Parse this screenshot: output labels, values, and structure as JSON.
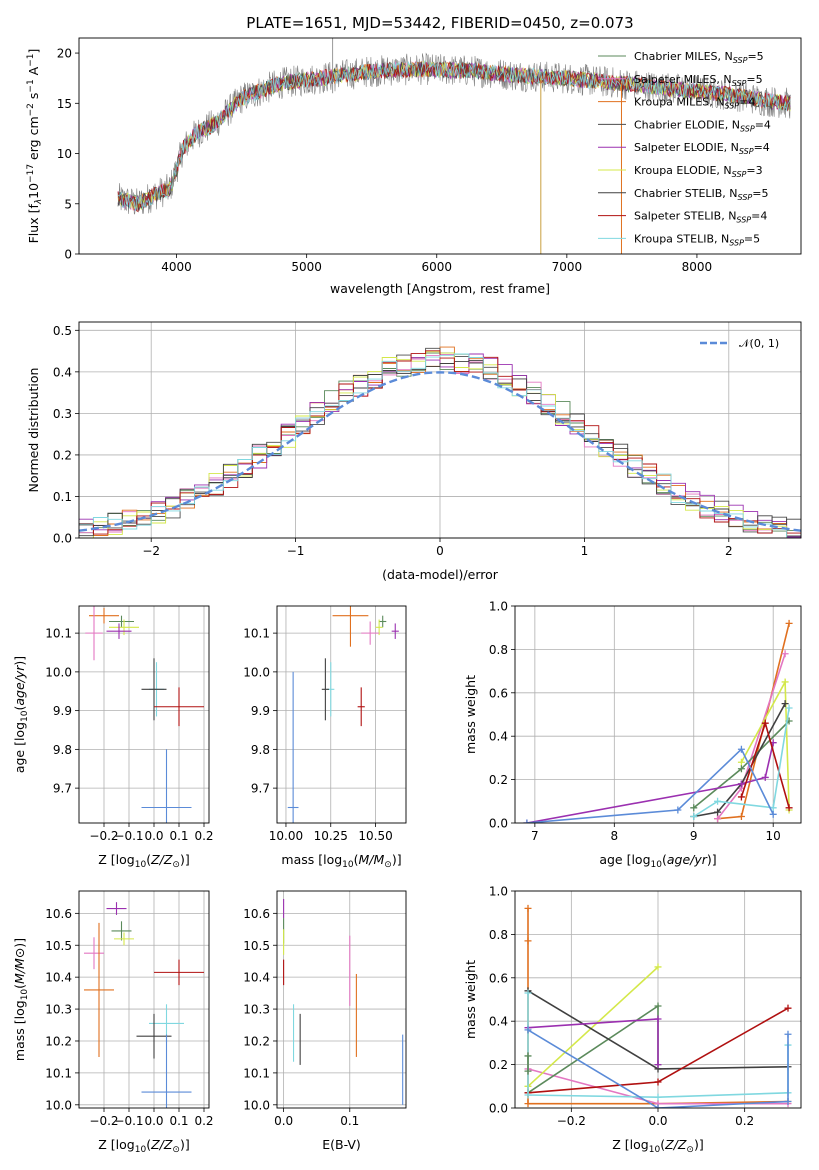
{
  "chart_data": [
    {
      "type": "line",
      "title": "PLATE=1651, MJD=53442, FIBERID=0450, z=0.073",
      "xlabel": "wavelength [Angstrom, rest frame]",
      "ylabel_parts": [
        "Flux [f",
        "λ",
        "10",
        "−17",
        " erg cm",
        "−2",
        " s",
        "−1",
        " A",
        "−1",
        "]"
      ],
      "xlim": [
        3250,
        8800
      ],
      "ylim": [
        0,
        21.5
      ],
      "xticks": [
        "4000",
        "5000",
        "6000",
        "7000",
        "8000"
      ],
      "yticks": [
        "0",
        "5",
        "10",
        "15",
        "20"
      ],
      "legend_position": "top-right",
      "series": [
        {
          "name": "Chabrier MILES, N",
          "sub": "SSP",
          "suffix": "=5",
          "color": "#5b8a5b"
        },
        {
          "name": "Salpeter MILES, N",
          "sub": "SSP",
          "suffix": "=5",
          "color": "#e377c2"
        },
        {
          "name": "Kroupa MILES, N",
          "sub": "SSP",
          "suffix": "=4",
          "color": "#e0701f"
        },
        {
          "name": "Chabrier ELODIE, N",
          "sub": "SSP",
          "suffix": "=4",
          "color": "#4d4d4d"
        },
        {
          "name": "Salpeter ELODIE, N",
          "sub": "SSP",
          "suffix": "=4",
          "color": "#9b30b0"
        },
        {
          "name": "Kroupa ELODIE, N",
          "sub": "SSP",
          "suffix": "=3",
          "color": "#d4e84a"
        },
        {
          "name": "Chabrier STELIB, N",
          "sub": "SSP",
          "suffix": "=5",
          "color": "#404040"
        },
        {
          "name": "Salpeter STELIB, N",
          "sub": "SSP",
          "suffix": "=4",
          "color": "#b01010"
        },
        {
          "name": "Kroupa STELIB, N",
          "sub": "SSP",
          "suffix": "=5",
          "color": "#80d8e0"
        }
      ],
      "continuum": [
        [
          3550,
          5.5
        ],
        [
          3700,
          5.0
        ],
        [
          3850,
          6.0
        ],
        [
          3950,
          6.5
        ],
        [
          4050,
          10.5
        ],
        [
          4150,
          12.0
        ],
        [
          4300,
          13.0
        ],
        [
          4500,
          15.5
        ],
        [
          4800,
          17.0
        ],
        [
          5100,
          17.5
        ],
        [
          5500,
          18.2
        ],
        [
          5900,
          18.4
        ],
        [
          6300,
          18.2
        ],
        [
          6600,
          17.8
        ],
        [
          7000,
          17.5
        ],
        [
          7400,
          17.0
        ],
        [
          7700,
          16.6
        ],
        [
          8000,
          16.2
        ],
        [
          8300,
          15.8
        ],
        [
          8500,
          15.3
        ],
        [
          8700,
          15.0
        ]
      ],
      "data_color": "#7f7f7f"
    },
    {
      "type": "step",
      "xlabel": "(data-model)/error",
      "ylabel": "Normed distribution",
      "xlim": [
        -2.5,
        2.5
      ],
      "ylim": [
        0,
        0.52
      ],
      "xticks": [
        "−2",
        "−1",
        "0",
        "1",
        "2"
      ],
      "yticks": [
        "0.0",
        "0.1",
        "0.2",
        "0.3",
        "0.4",
        "0.5"
      ],
      "normal_label": "𝒩(0, 1)",
      "normal_color": "#5b8bd8",
      "legend_position": "top-right"
    },
    {
      "type": "errorbar",
      "xlabel_parts": [
        "Z [log",
        "10",
        "(",
        "Z/Z",
        "⊙",
        ")]"
      ],
      "ylabel_parts": [
        "age  [log",
        "10",
        "(",
        "age/yr",
        ")]"
      ],
      "xlim": [
        -0.3,
        0.22
      ],
      "ylim": [
        9.61,
        10.17
      ],
      "xticks": [
        "−0.2",
        "−0.1",
        "0.0",
        "0.1",
        "0.2"
      ],
      "yticks": [
        "9.7",
        "9.8",
        "9.9",
        "10.0",
        "10.1"
      ],
      "points": [
        {
          "x": -0.2,
          "y": 10.145,
          "xerr": 0.06,
          "yerr": 0.02,
          "color": "#e0701f"
        },
        {
          "x": -0.13,
          "y": 10.13,
          "xerr": 0.05,
          "yerr": 0.015,
          "color": "#5b8a5b"
        },
        {
          "x": -0.12,
          "y": 10.115,
          "xerr": 0.06,
          "yerr": 0.02,
          "color": "#d4e84a"
        },
        {
          "x": -0.14,
          "y": 10.105,
          "xerr": 0.05,
          "yerr": 0.02,
          "color": "#9b30b0"
        },
        {
          "x": -0.24,
          "y": 10.1,
          "xerr": 0.035,
          "yerr": 0.07,
          "color": "#e377c2"
        },
        {
          "x": 0.01,
          "y": 9.955,
          "xerr": 0.03,
          "yerr": 0.07,
          "color": "#80d8e0"
        },
        {
          "x": 0.0,
          "y": 9.955,
          "xerr": 0.05,
          "yerr": 0.08,
          "color": "#404040"
        },
        {
          "x": 0.1,
          "y": 9.91,
          "xerr": 0.1,
          "yerr": 0.05,
          "color": "#b01010"
        },
        {
          "x": 0.05,
          "y": 9.65,
          "xerr": 0.1,
          "yerr": 0.15,
          "color": "#5b8bd8"
        }
      ]
    },
    {
      "type": "errorbar",
      "xlabel_parts": [
        "mass [log",
        "10",
        "(",
        "M/M",
        "⊙",
        ")]"
      ],
      "ylabel_parts": [],
      "xlim": [
        9.95,
        10.67
      ],
      "ylim": [
        9.61,
        10.17
      ],
      "xticks": [
        "10.00",
        "10.25",
        "10.50"
      ],
      "yticks": [
        "9.7",
        "9.8",
        "9.9",
        "10.0",
        "10.1"
      ],
      "points": [
        {
          "x": 10.36,
          "y": 10.145,
          "xerr": 0.1,
          "yerr": 0.08,
          "color": "#e0701f"
        },
        {
          "x": 10.54,
          "y": 10.13,
          "xerr": 0.02,
          "yerr": 0.015,
          "color": "#5b8a5b"
        },
        {
          "x": 10.52,
          "y": 10.115,
          "xerr": 0.02,
          "yerr": 0.02,
          "color": "#d4e84a"
        },
        {
          "x": 10.61,
          "y": 10.105,
          "xerr": 0.02,
          "yerr": 0.02,
          "color": "#9b30b0"
        },
        {
          "x": 10.47,
          "y": 10.1,
          "xerr": 0.05,
          "yerr": 0.03,
          "color": "#e377c2"
        },
        {
          "x": 10.25,
          "y": 9.955,
          "xerr": 0.02,
          "yerr": 0.07,
          "color": "#80d8e0"
        },
        {
          "x": 10.22,
          "y": 9.955,
          "xerr": 0.02,
          "yerr": 0.08,
          "color": "#404040"
        },
        {
          "x": 10.42,
          "y": 9.91,
          "xerr": 0.02,
          "yerr": 0.05,
          "color": "#b01010"
        },
        {
          "x": 10.04,
          "y": 9.65,
          "xerr": 0.03,
          "yerr": 0.35,
          "color": "#5b8bd8"
        }
      ]
    },
    {
      "type": "line",
      "xlabel_parts": [
        "age  [log",
        "10",
        "(",
        "age/yr",
        ")]"
      ],
      "ylabel": "mass weight",
      "xlim": [
        6.75,
        10.35
      ],
      "ylim": [
        0,
        1.0
      ],
      "xticks": [
        "7",
        "8",
        "9",
        "10"
      ],
      "yticks": [
        "0.0",
        "0.2",
        "0.4",
        "0.6",
        "0.8",
        "1.0"
      ],
      "series": [
        {
          "color": "#e0701f",
          "x": [
            9.3,
            9.6,
            10.2
          ],
          "y": [
            0.02,
            0.03,
            0.92
          ]
        },
        {
          "color": "#e377c2",
          "x": [
            9.3,
            9.6,
            10.15
          ],
          "y": [
            0.02,
            0.16,
            0.78
          ]
        },
        {
          "color": "#d4e84a",
          "x": [
            9.6,
            10.15,
            10.2
          ],
          "y": [
            0.28,
            0.65,
            0.06
          ]
        },
        {
          "color": "#5b8a5b",
          "x": [
            9.0,
            9.6,
            10.2
          ],
          "y": [
            0.07,
            0.25,
            0.47
          ]
        },
        {
          "color": "#404040",
          "x": [
            9.0,
            9.3,
            9.6,
            10.15
          ],
          "y": [
            0.03,
            0.05,
            0.18,
            0.55
          ]
        },
        {
          "color": "#9b30b0",
          "x": [
            6.9,
            9.6,
            9.9,
            10.0
          ],
          "y": [
            0.0,
            0.18,
            0.21,
            0.37
          ]
        },
        {
          "color": "#b01010",
          "x": [
            9.6,
            9.9,
            10.2
          ],
          "y": [
            0.12,
            0.46,
            0.07
          ]
        },
        {
          "color": "#80d8e0",
          "x": [
            9.0,
            9.3,
            10.0,
            10.2
          ],
          "y": [
            0.03,
            0.1,
            0.07,
            0.53
          ]
        },
        {
          "color": "#5b8bd8",
          "x": [
            6.9,
            8.8,
            9.6,
            10.0
          ],
          "y": [
            0.0,
            0.06,
            0.34,
            0.04
          ]
        }
      ]
    },
    {
      "type": "errorbar",
      "xlabel_parts": [
        "Z [log",
        "10",
        "(",
        "Z/Z",
        "⊙",
        ")]"
      ],
      "ylabel_parts": [
        "mass [log",
        "10",
        "(",
        "M/M",
        "⊙",
        ")]"
      ],
      "xlim": [
        -0.3,
        0.22
      ],
      "ylim": [
        9.99,
        10.67
      ],
      "xticks": [
        "−0.2",
        "−0.1",
        "0.0",
        "0.1",
        "0.2"
      ],
      "yticks": [
        "10.0",
        "10.1",
        "10.2",
        "10.3",
        "10.4",
        "10.5",
        "10.6"
      ],
      "points": [
        {
          "x": -0.15,
          "y": 10.615,
          "xerr": 0.04,
          "yerr": 0.02,
          "color": "#9b30b0"
        },
        {
          "x": -0.13,
          "y": 10.545,
          "xerr": 0.04,
          "yerr": 0.03,
          "color": "#5b8a5b"
        },
        {
          "x": -0.12,
          "y": 10.52,
          "xerr": 0.04,
          "yerr": 0.02,
          "color": "#d4e84a"
        },
        {
          "x": -0.24,
          "y": 10.475,
          "xerr": 0.04,
          "yerr": 0.05,
          "color": "#e377c2"
        },
        {
          "x": 0.1,
          "y": 10.415,
          "xerr": 0.1,
          "yerr": 0.04,
          "color": "#b01010"
        },
        {
          "x": -0.22,
          "y": 10.36,
          "xerr": 0.06,
          "yerr": 0.21,
          "color": "#e0701f"
        },
        {
          "x": 0.05,
          "y": 10.255,
          "xerr": 0.07,
          "yerr": 0.06,
          "color": "#80d8e0"
        },
        {
          "x": 0.0,
          "y": 10.215,
          "xerr": 0.07,
          "yerr": 0.07,
          "color": "#404040"
        },
        {
          "x": 0.05,
          "y": 10.04,
          "xerr": 0.1,
          "yerr": 0.18,
          "color": "#5b8bd8"
        }
      ]
    },
    {
      "type": "errorbar",
      "xlabel": "E(B-V)",
      "ylabel_parts": [],
      "xlim": [
        -0.01,
        0.185
      ],
      "ylim": [
        9.99,
        10.67
      ],
      "xticks": [
        "0.0",
        "0.1"
      ],
      "yticks": [
        "10.0",
        "10.1",
        "10.2",
        "10.3",
        "10.4",
        "10.5",
        "10.6"
      ],
      "points": [
        {
          "x": 0.0,
          "y": 10.615,
          "xerr": 0,
          "yerr": 0.03,
          "color": "#9b30b0"
        },
        {
          "x": 0.0,
          "y": 10.545,
          "xerr": 0,
          "yerr": 0.04,
          "color": "#5b8a5b"
        },
        {
          "x": 0.0,
          "y": 10.51,
          "xerr": 0,
          "yerr": 0.04,
          "color": "#d4e84a"
        },
        {
          "x": 0.0,
          "y": 10.415,
          "xerr": 0,
          "yerr": 0.04,
          "color": "#b01010"
        },
        {
          "x": 0.1,
          "y": 10.42,
          "xerr": 0,
          "yerr": 0.11,
          "color": "#e377c2"
        },
        {
          "x": 0.11,
          "y": 10.28,
          "xerr": 0,
          "yerr": 0.13,
          "color": "#e0701f"
        },
        {
          "x": 0.015,
          "y": 10.225,
          "xerr": 0,
          "yerr": 0.09,
          "color": "#80d8e0"
        },
        {
          "x": 0.025,
          "y": 10.205,
          "xerr": 0,
          "yerr": 0.08,
          "color": "#404040"
        },
        {
          "x": 0.18,
          "y": 10.11,
          "xerr": 0,
          "yerr": 0.11,
          "color": "#5b8bd8"
        }
      ]
    },
    {
      "type": "line",
      "xlabel_parts": [
        "Z [log",
        "10",
        "(",
        "Z/Z",
        "⊙",
        ")]"
      ],
      "ylabel": "mass weight",
      "xlim": [
        -0.33,
        0.33
      ],
      "ylim": [
        0,
        1.0
      ],
      "xticks": [
        "−0.2",
        "0.0",
        "0.2"
      ],
      "yticks": [
        "0.0",
        "0.2",
        "0.4",
        "0.6",
        "0.8",
        "1.0"
      ],
      "series": [
        {
          "color": "#e0701f",
          "x": [
            -0.3,
            -0.3,
            -0.3,
            0.0,
            0.3
          ],
          "y": [
            0.92,
            0.77,
            0.02,
            0.02,
            0.03
          ]
        },
        {
          "color": "#e377c2",
          "x": [
            -0.3,
            0.0,
            0.3
          ],
          "y": [
            0.18,
            0.02,
            0.02
          ]
        },
        {
          "color": "#d4e84a",
          "x": [
            -0.3,
            0.0
          ],
          "y": [
            0.1,
            0.65
          ]
        },
        {
          "color": "#5b8a5b",
          "x": [
            -0.3,
            0.0,
            0.0
          ],
          "y": [
            0.07,
            0.47,
            0.2
          ]
        },
        {
          "color": "#404040",
          "x": [
            -0.3,
            0.0,
            0.3
          ],
          "y": [
            0.54,
            0.18,
            0.19
          ]
        },
        {
          "color": "#9b30b0",
          "x": [
            -0.3,
            0.0,
            0.0
          ],
          "y": [
            0.37,
            0.41,
            0.2
          ]
        },
        {
          "color": "#b01010",
          "x": [
            -0.3,
            0.0,
            0.3
          ],
          "y": [
            0.07,
            0.12,
            0.46
          ]
        },
        {
          "color": "#80d8e0",
          "x": [
            -0.3,
            -0.3,
            0.0,
            0.3,
            0.3
          ],
          "y": [
            0.53,
            0.06,
            0.05,
            0.07,
            0.29
          ]
        },
        {
          "color": "#5b8bd8",
          "x": [
            -0.3,
            0.0,
            0.3,
            0.3
          ],
          "y": [
            0.36,
            0.0,
            0.03,
            0.34
          ]
        },
        {
          "color": "#5b8a5b",
          "x": [
            -0.3,
            -0.3
          ],
          "y": [
            0.24,
            0.17
          ]
        }
      ]
    }
  ]
}
